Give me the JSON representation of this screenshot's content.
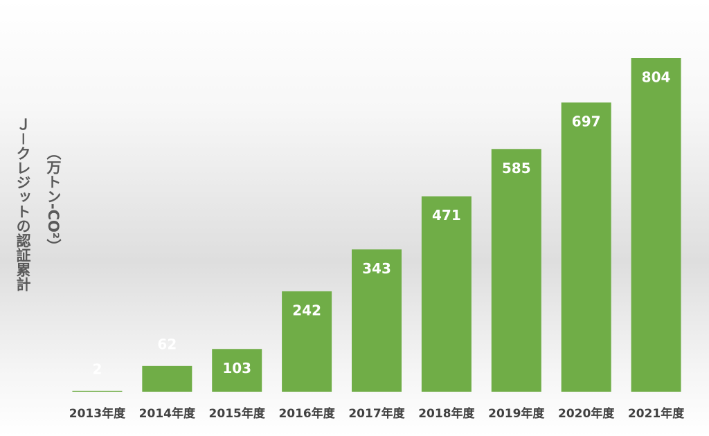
{
  "chart_data": {
    "type": "bar",
    "y_label": [
      "Ｊ－クレジットの認証累計",
      "（万トン-CO²）"
    ],
    "categories": [
      "2013年度",
      "2014年度",
      "2015年度",
      "2016年度",
      "2017年度",
      "2018年度",
      "2019年度",
      "2020年度",
      "2021年度"
    ],
    "values": [
      2,
      62,
      103,
      242,
      343,
      471,
      585,
      697,
      804
    ],
    "color": "#70ad47"
  }
}
